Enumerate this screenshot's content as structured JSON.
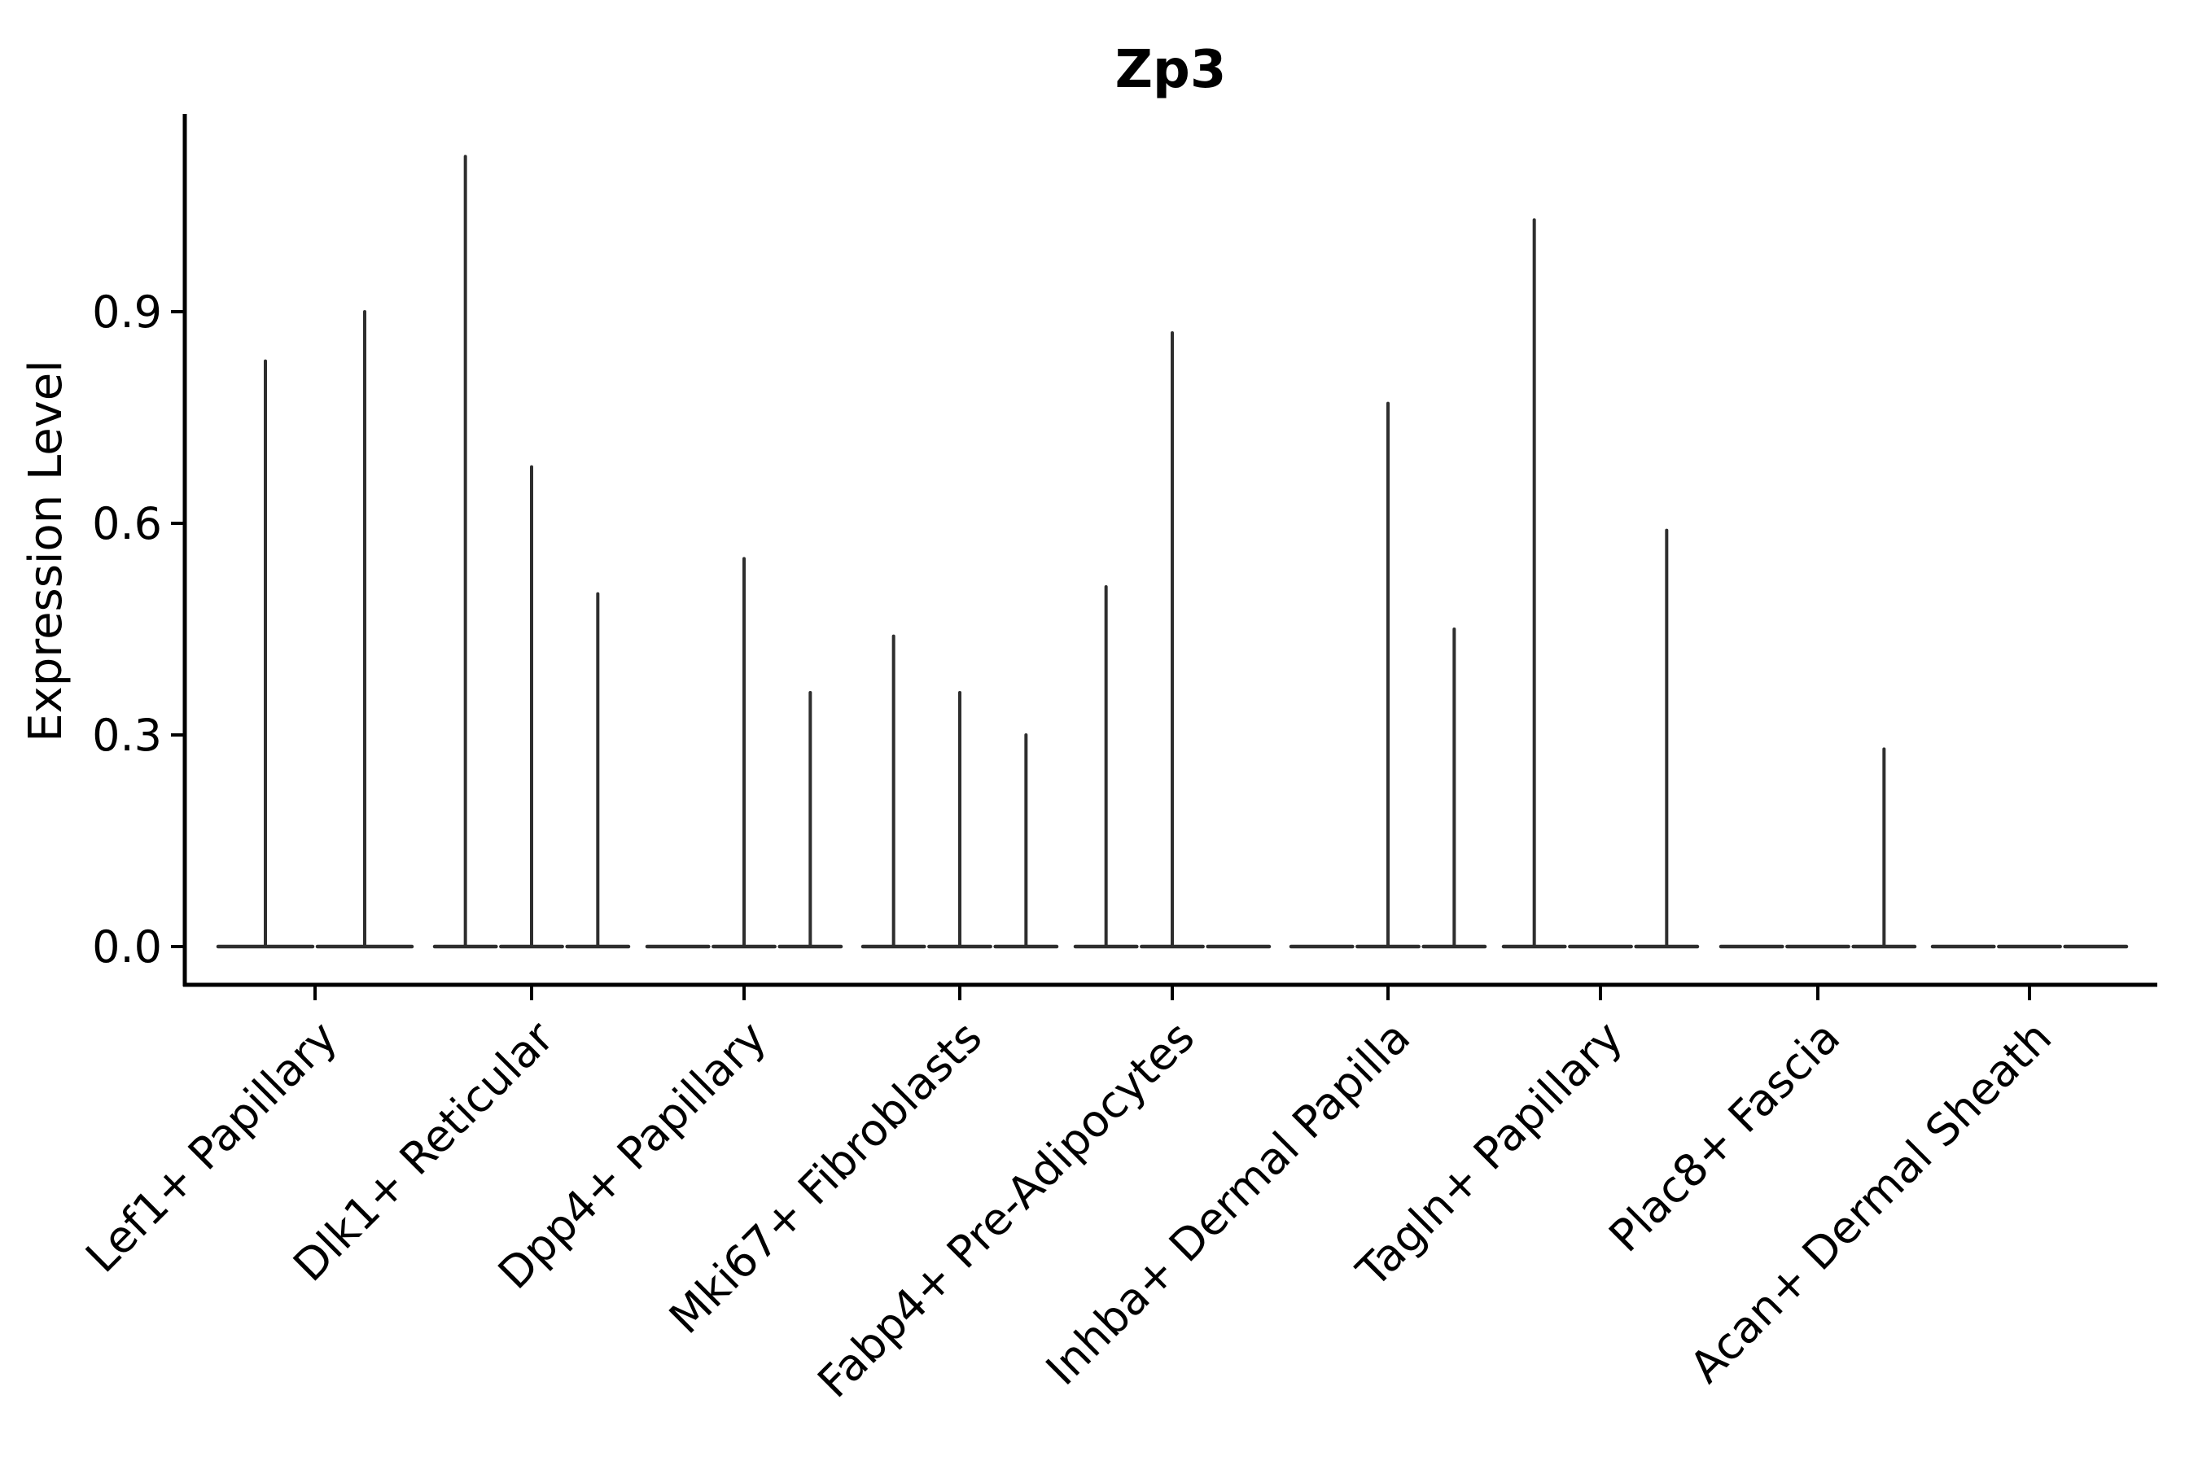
{
  "figure": {
    "title": "Zp3"
  },
  "chart_data": {
    "type": "violin",
    "title": "Zp3",
    "xlabel": "",
    "ylabel": "Expression Level",
    "ytick_labels": [
      "0.0",
      "0.3",
      "0.6",
      "0.9"
    ],
    "ytick_values": [
      0.0,
      0.3,
      0.6,
      0.9
    ],
    "ylim": [
      -0.055,
      1.18
    ],
    "grid": false,
    "legend": "none",
    "categories": [
      "Lef1+ Papillary",
      "Dlk1+ Reticular",
      "Dpp4+ Papillary",
      "Mki67+ Fibroblasts",
      "Fabp4+ Pre-Adipocytes",
      "Inhba+ Dermal Papilla",
      "Tagln+ Papillary",
      "Plac8+ Fascia",
      "Acan+ Dermal Sheath"
    ],
    "groups": [
      {
        "category": "Lef1+ Papillary",
        "violin_peaks": [
          0.83,
          0.9
        ]
      },
      {
        "category": "Dlk1+ Reticular",
        "violin_peaks": [
          1.12,
          0.68,
          0.5
        ]
      },
      {
        "category": "Dpp4+ Papillary",
        "violin_peaks": [
          0,
          0.55,
          0.36
        ]
      },
      {
        "category": "Mki67+ Fibroblasts",
        "violin_peaks": [
          0.44,
          0.36,
          0.3
        ]
      },
      {
        "category": "Fabp4+ Pre-Adipocytes",
        "violin_peaks": [
          0.51,
          0.87,
          0
        ]
      },
      {
        "category": "Inhba+ Dermal Papilla",
        "violin_peaks": [
          0,
          0.77,
          0.45
        ]
      },
      {
        "category": "Tagln+ Papillary",
        "violin_peaks": [
          1.03,
          0,
          0.59
        ]
      },
      {
        "category": "Plac8+ Fascia",
        "violin_peaks": [
          0,
          0,
          0.28
        ]
      },
      {
        "category": "Acan+ Dermal Sheath",
        "violin_peaks": [
          0,
          0,
          0
        ]
      }
    ],
    "colors": {
      "violin_line": "#2e2e2e",
      "axis": "#000000",
      "background": "#ffffff"
    }
  }
}
